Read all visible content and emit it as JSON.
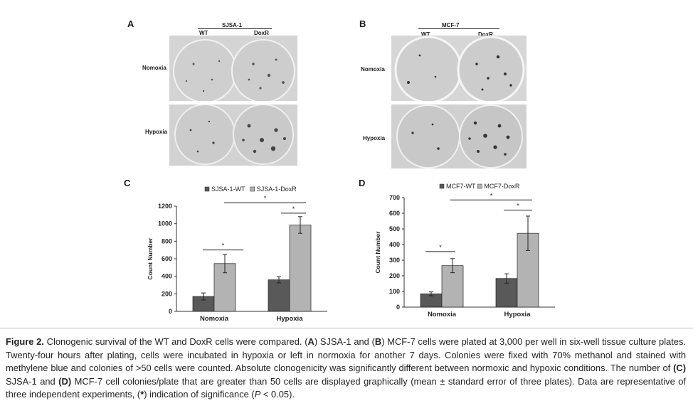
{
  "panels": {
    "A": {
      "letter": "A",
      "cell_line": "SJSA-1",
      "col1": "WT",
      "col2": "DoxR",
      "row1": "Nomoxia",
      "row2": "Hypoxia"
    },
    "B": {
      "letter": "B",
      "cell_line": "MCF-7",
      "col1": "WT",
      "col2": "DoxR",
      "row1": "Nomoxia",
      "row2": "Hypoxia"
    },
    "C": {
      "letter": "C"
    },
    "D": {
      "letter": "D"
    }
  },
  "chart_data": [
    {
      "type": "bar",
      "id": "C",
      "categories": [
        "Nomoxia",
        "Hypoxia"
      ],
      "series": [
        {
          "name": "SJSA-1-WT",
          "values": [
            170,
            360
          ],
          "errors": [
            40,
            35
          ],
          "color": "#595959"
        },
        {
          "name": "SJSA-1-DoxR",
          "values": [
            545,
            985
          ],
          "errors": [
            105,
            95
          ],
          "color": "#b3b3b3"
        }
      ],
      "ylabel": "Count Number",
      "ylim": [
        0,
        1200
      ],
      "yticks": [
        "0",
        "200",
        "400",
        "600",
        "800",
        "1000",
        "1200"
      ],
      "significance": [
        "*",
        "*",
        "*"
      ],
      "legend": "top"
    },
    {
      "type": "bar",
      "id": "D",
      "categories": [
        "Nomoxia",
        "Hypoxia"
      ],
      "series": [
        {
          "name": "MCF7-WT",
          "values": [
            85,
            183
          ],
          "errors": [
            12,
            30
          ],
          "color": "#595959"
        },
        {
          "name": "MCF7-DoxR",
          "values": [
            265,
            472
          ],
          "errors": [
            45,
            110
          ],
          "color": "#b3b3b3"
        }
      ],
      "ylabel": "Count Number",
      "ylim": [
        0,
        700
      ],
      "yticks": [
        "0",
        "100",
        "200",
        "300",
        "400",
        "500",
        "600",
        "700"
      ],
      "significance": [
        "*",
        "*",
        "*"
      ],
      "legend": "top"
    }
  ],
  "caption": {
    "label": "Figure 2.",
    "t1": " Clonogenic survival of the WT and DoxR cells were compared. (",
    "A": "A",
    "t2": ") SJSA-1 and (",
    "B": "B",
    "t3": ") MCF-7 cells were plated at 3,000 per well in six-well tissue culture plates. Twenty-four hours after plating, cells were incubated in hypoxia or left in normoxia for another 7 days. Colonies were fixed with 70% methanol and stained with methylene blue and colonies of >50 cells were counted. Absolute clonogenicity was significantly different between normoxic and hypoxic conditions. The number of ",
    "C": "(C)",
    "t4": " SJSA-1 and ",
    "D": "(D)",
    "t5": " MCF-7 cell colonies/plate that are greater than 50 cells are displayed graphically (mean ± standard error of three plates).  Data are representative of three independent experiments, (",
    "star": "*",
    "t6": ") indication of significance (",
    "P": "P",
    "t7": " < 0.05)."
  }
}
